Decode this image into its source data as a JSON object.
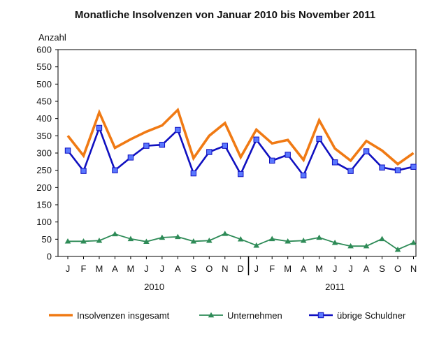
{
  "chart_data": {
    "type": "line",
    "title": "Monatliche Insolvenzen von Januar 2010 bis November 2011",
    "ylabel": "Anzahl",
    "xlabel": "",
    "ylim": [
      0,
      600
    ],
    "yticks": [
      "0",
      "50",
      "100",
      "150",
      "200",
      "250",
      "300",
      "350",
      "400",
      "450",
      "500",
      "550",
      "600"
    ],
    "categories": [
      "J",
      "F",
      "M",
      "A",
      "M",
      "J",
      "J",
      "A",
      "S",
      "O",
      "N",
      "D",
      "J",
      "F",
      "M",
      "A",
      "M",
      "J",
      "J",
      "A",
      "S",
      "O",
      "N"
    ],
    "year_labels": [
      "2010",
      "2011"
    ],
    "grid": false,
    "legend_position": "bottom",
    "series": [
      {
        "name": "Insolvenzen insgesamt",
        "color": "#f07a14",
        "marker": "none",
        "values": [
          350,
          292,
          418,
          315,
          340,
          362,
          380,
          425,
          285,
          350,
          387,
          288,
          368,
          328,
          338,
          280,
          395,
          313,
          278,
          335,
          307,
          268,
          300
        ]
      },
      {
        "name": "Unternehmen",
        "color": "#2e8b57",
        "marker": "triangle-icon",
        "values": [
          44,
          44,
          46,
          65,
          51,
          43,
          55,
          57,
          44,
          46,
          66,
          50,
          32,
          51,
          44,
          46,
          55,
          40,
          30,
          30,
          51,
          20,
          40
        ]
      },
      {
        "name": "übrige Schuldner",
        "color": "#1010c0",
        "marker": "square-icon",
        "values": [
          307,
          248,
          373,
          250,
          287,
          321,
          324,
          367,
          241,
          303,
          321,
          239,
          339,
          278,
          295,
          235,
          341,
          273,
          248,
          305,
          258,
          250,
          260
        ]
      }
    ]
  }
}
